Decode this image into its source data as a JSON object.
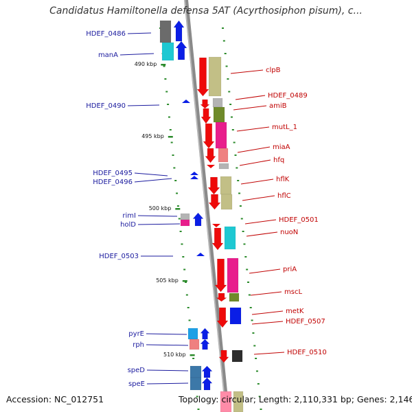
{
  "title": "Candidatus Hamiltonella defensa 5AT (Acyrthosiphon pisum), c...",
  "footer": {
    "accession": "Accession: NC_012751",
    "topology": "Topology: circular; Length: 2,110,331 bp; Genes: 2,146"
  },
  "colors": {
    "backbone": "#8a8a8a",
    "forward_label": "#1a1a9e",
    "reverse_label": "#c00000",
    "tick": "#2a8a2a"
  },
  "kbp_marks": [
    "490 kbp",
    "495 kbp",
    "500 kbp",
    "505 kbp",
    "510 kbp"
  ],
  "forward_genes": [
    "HDEF_0486",
    "manA",
    "HDEF_0490",
    "HDEF_0495",
    "HDEF_0496",
    "rimI",
    "holD",
    "HDEF_0503",
    "pyrE",
    "rph",
    "speD",
    "speE"
  ],
  "reverse_genes": [
    "clpB",
    "HDEF_0489",
    "amiB",
    "mutL_1",
    "miaA",
    "hfq",
    "hflK",
    "hflC",
    "HDEF_0501",
    "nuoN",
    "priA",
    "mscL",
    "metK",
    "HDEF_0507",
    "HDEF_0510"
  ]
}
